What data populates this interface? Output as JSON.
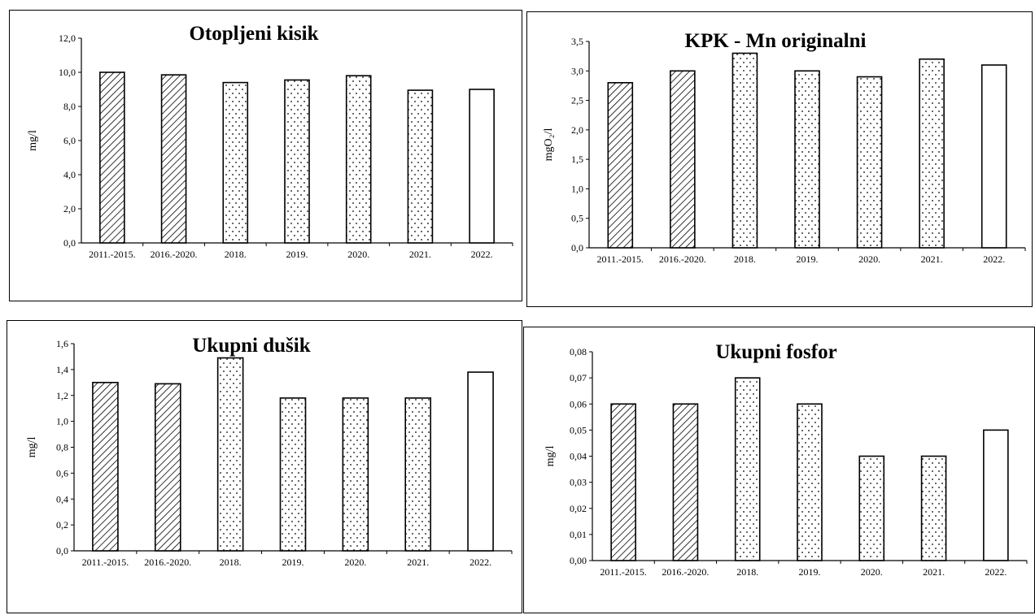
{
  "chart_data": [
    {
      "type": "bar",
      "title": "Otopljeni kisik",
      "ylabel": "mg/l",
      "xlabel": "",
      "categories": [
        "2011.-2015.",
        "2016.-2020.",
        "2018.",
        "2019.",
        "2020.",
        "2021.",
        "2022."
      ],
      "values": [
        10.0,
        9.85,
        9.4,
        9.55,
        9.8,
        8.95,
        9.0
      ],
      "patterns": [
        "hatch",
        "hatch",
        "dots",
        "dots",
        "dots",
        "dots",
        "none"
      ],
      "ylim": [
        0,
        12
      ],
      "yticks": [
        "0,0",
        "2,0",
        "4,0",
        "6,0",
        "8,0",
        "10,0",
        "12,0"
      ],
      "grid": false,
      "legend": "none"
    },
    {
      "type": "bar",
      "title": "KPK - Mn originalni",
      "ylabel": "mgO₂/l",
      "xlabel": "",
      "categories": [
        "2011.-2015.",
        "2016.-2020.",
        "2018.",
        "2019.",
        "2020.",
        "2021.",
        "2022."
      ],
      "values": [
        2.8,
        3.0,
        3.3,
        3.0,
        2.9,
        3.2,
        3.1
      ],
      "patterns": [
        "hatch",
        "hatch",
        "dots",
        "dots",
        "dots",
        "dots",
        "none"
      ],
      "ylim": [
        0,
        3.5
      ],
      "yticks": [
        "0,0",
        "0,5",
        "1,0",
        "1,5",
        "2,0",
        "2,5",
        "3,0",
        "3,5"
      ],
      "grid": false,
      "legend": "none"
    },
    {
      "type": "bar",
      "title": "Ukupni dušik",
      "ylabel": "mg/l",
      "xlabel": "",
      "categories": [
        "2011.-2015.",
        "2016.-2020.",
        "2018.",
        "2019.",
        "2020.",
        "2021.",
        "2022."
      ],
      "values": [
        1.3,
        1.29,
        1.49,
        1.18,
        1.18,
        1.18,
        1.38
      ],
      "patterns": [
        "hatch",
        "hatch",
        "dots",
        "dots",
        "dots",
        "dots",
        "none"
      ],
      "ylim": [
        0,
        1.6
      ],
      "yticks": [
        "0,0",
        "0,2",
        "0,4",
        "0,6",
        "0,8",
        "1,0",
        "1,2",
        "1,4",
        "1,6"
      ],
      "grid": false,
      "legend": "none"
    },
    {
      "type": "bar",
      "title": "Ukupni fosfor",
      "ylabel": "mg/l",
      "xlabel": "",
      "categories": [
        "2011.-2015.",
        "2016.-2020.",
        "2018.",
        "2019.",
        "2020.",
        "2021.",
        "2022."
      ],
      "values": [
        0.06,
        0.06,
        0.07,
        0.06,
        0.04,
        0.04,
        0.05
      ],
      "patterns": [
        "hatch",
        "hatch",
        "dots",
        "dots",
        "dots",
        "dots",
        "none"
      ],
      "ylim": [
        0,
        0.08
      ],
      "yticks": [
        "0,00",
        "0,01",
        "0,02",
        "0,03",
        "0,04",
        "0,05",
        "0,06",
        "0,07",
        "0,08"
      ],
      "grid": false,
      "legend": "none"
    }
  ]
}
